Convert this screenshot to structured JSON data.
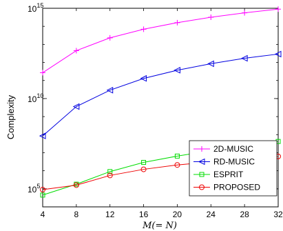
{
  "chart_data": {
    "type": "line",
    "title": "",
    "xlabel": "M(= N)",
    "ylabel": "Complexity",
    "x": [
      4,
      8,
      12,
      16,
      20,
      24,
      28,
      32
    ],
    "xlim": [
      4,
      32
    ],
    "ylim": [
      10000,
      1000000000000000
    ],
    "yscale": "log",
    "x_tick_labels": [
      "4",
      "8",
      "12",
      "16",
      "20",
      "24",
      "28",
      "32"
    ],
    "y_ticks": [
      {
        "value": 100000,
        "base": "10",
        "exp": "5"
      },
      {
        "value": 10000000000,
        "base": "10",
        "exp": "10"
      },
      {
        "value": 1000000000000000,
        "base": "10",
        "exp": "15"
      }
    ],
    "grid": false,
    "legend_position": "bottom-right",
    "series": [
      {
        "name": "2D-MUSIC",
        "color": "#ff00ff",
        "marker": "plus",
        "values": [
          270000000000.0,
          4500000000000.0,
          23000000000000.0,
          69000000000000.0,
          160000000000000.0,
          320000000000000.0,
          560000000000000.0,
          900000000000000.0
        ]
      },
      {
        "name": "RD-MUSIC",
        "color": "#0000e0",
        "marker": "triangle-left",
        "values": [
          85000000.0,
          3600000000.0,
          29000000000.0,
          130000000000.0,
          370000000000.0,
          850000000000.0,
          1700000000000.0,
          2900000000000.0
        ]
      },
      {
        "name": "ESPRIT",
        "color": "#00dd00",
        "marker": "square",
        "values": [
          45000.0,
          180000.0,
          900000.0,
          2900000.0,
          6500000.0,
          13000000.0,
          24000000.0,
          42000000.0
        ]
      },
      {
        "name": "PROPOSED",
        "color": "#ee0000",
        "marker": "circle",
        "values": [
          90000.0,
          160000.0,
          550000.0,
          1200000.0,
          2100000.0,
          3100000.0,
          4300000.0,
          6200000.0
        ]
      }
    ]
  }
}
